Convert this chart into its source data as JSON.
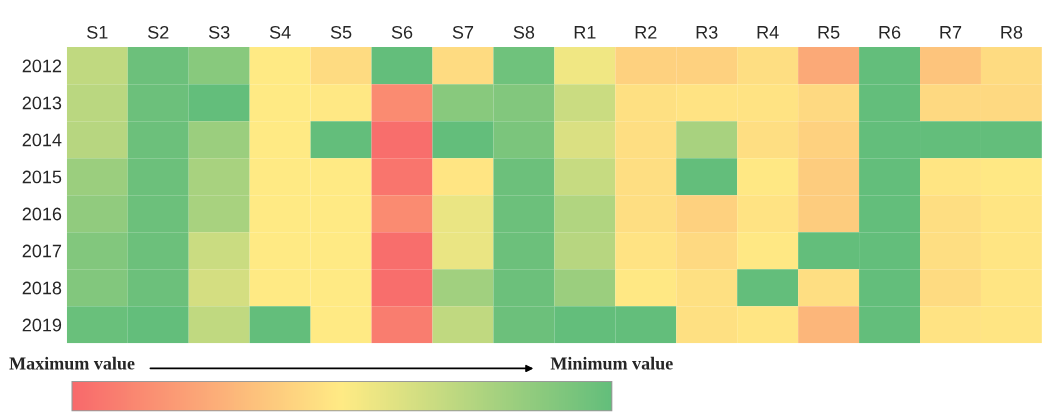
{
  "chart_data": {
    "type": "heatmap",
    "categories": [
      "S1",
      "S2",
      "S3",
      "S4",
      "S5",
      "S6",
      "S7",
      "S8",
      "R1",
      "R2",
      "R3",
      "R4",
      "R5",
      "R6",
      "R7",
      "R8"
    ],
    "y_categories": [
      "2012",
      "2013",
      "2014",
      "2015",
      "2016",
      "2017",
      "2018",
      "2019"
    ],
    "cells": [
      [
        0.3,
        0.03,
        0.12,
        0.5,
        0.56,
        0.0,
        0.56,
        0.04,
        0.45,
        0.6,
        0.6,
        0.55,
        0.75,
        0.0,
        0.65,
        0.56
      ],
      [
        0.28,
        0.03,
        0.0,
        0.5,
        0.51,
        0.87,
        0.12,
        0.1,
        0.33,
        0.54,
        0.53,
        0.53,
        0.57,
        0.0,
        0.57,
        0.57
      ],
      [
        0.27,
        0.03,
        0.18,
        0.5,
        0.0,
        0.98,
        0.0,
        0.08,
        0.38,
        0.55,
        0.22,
        0.55,
        0.6,
        0.0,
        0.0,
        0.0
      ],
      [
        0.18,
        0.03,
        0.22,
        0.5,
        0.5,
        0.95,
        0.52,
        0.03,
        0.32,
        0.55,
        0.0,
        0.51,
        0.62,
        0.0,
        0.52,
        0.51
      ],
      [
        0.15,
        0.03,
        0.22,
        0.5,
        0.5,
        0.87,
        0.43,
        0.03,
        0.25,
        0.55,
        0.6,
        0.53,
        0.62,
        0.0,
        0.55,
        0.52
      ],
      [
        0.1,
        0.03,
        0.33,
        0.5,
        0.5,
        0.98,
        0.43,
        0.03,
        0.27,
        0.53,
        0.57,
        0.51,
        0.0,
        0.0,
        0.55,
        0.52
      ],
      [
        0.1,
        0.03,
        0.36,
        0.5,
        0.5,
        0.98,
        0.2,
        0.03,
        0.18,
        0.51,
        0.54,
        0.0,
        0.55,
        0.0,
        0.56,
        0.52
      ],
      [
        0.02,
        0.0,
        0.3,
        0.0,
        0.5,
        0.92,
        0.3,
        0.03,
        0.0,
        0.0,
        0.54,
        0.52,
        0.7,
        0.0,
        0.53,
        0.52
      ]
    ],
    "clim": [
      1,
      0
    ],
    "cticks": [
      {
        "value": 1,
        "label": "Maximum value"
      },
      {
        "value": 0,
        "label": "Minimum value"
      }
    ]
  }
}
